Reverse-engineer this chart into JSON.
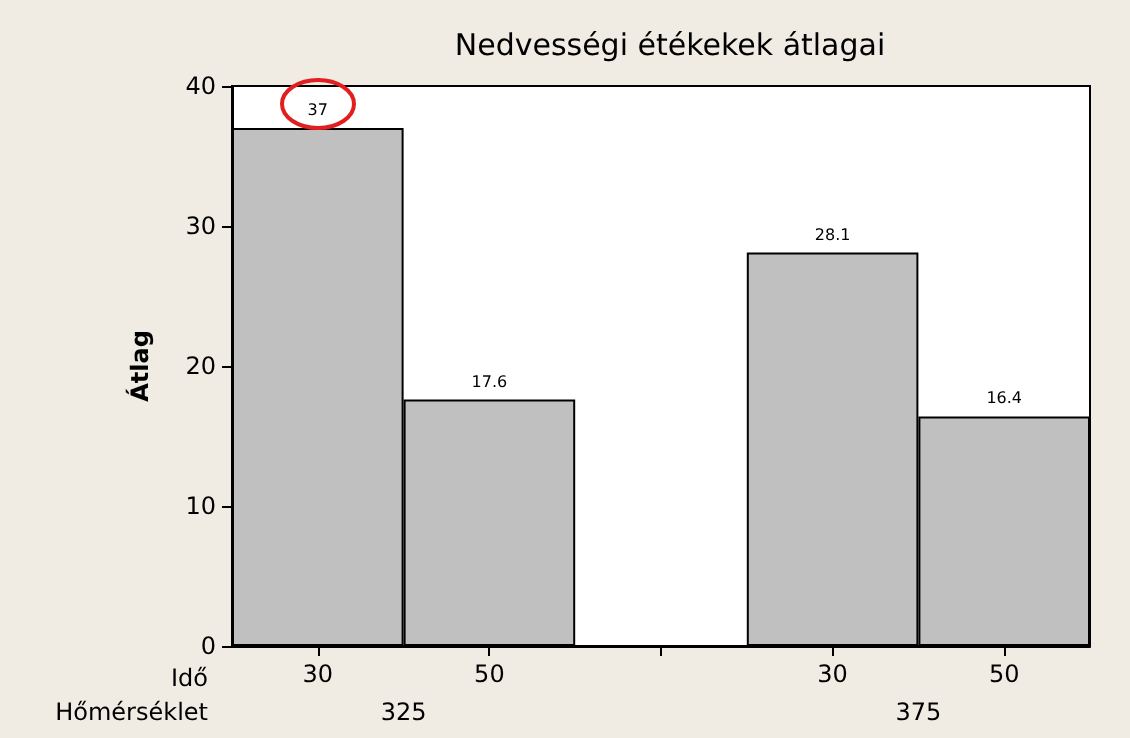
{
  "chart_data": {
    "type": "bar",
    "title": "Nedvességi étékekek átlagai",
    "ylabel": "Átlag",
    "categories": [
      "30",
      "50",
      null,
      "30",
      "50"
    ],
    "values": [
      37,
      17.6,
      null,
      28.1,
      16.4
    ],
    "color": "#c0c0c0",
    "data_labels": true,
    "ylim": [
      0,
      40
    ],
    "yticks": [
      0,
      10,
      20,
      30,
      40
    ],
    "grid": false,
    "annotations": [
      "Idő",
      "Hőmérséklet",
      "325",
      "375"
    ]
  }
}
